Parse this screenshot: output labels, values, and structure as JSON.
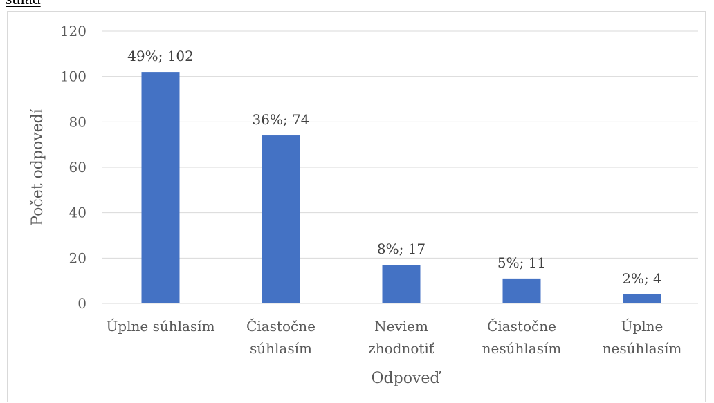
{
  "page": {
    "fragment_text": "súlad"
  },
  "chart_data": {
    "type": "bar",
    "title": "",
    "xlabel": "Odpoveď",
    "ylabel": "Počet odpovedí",
    "ylim": [
      0,
      120
    ],
    "yticks": [
      0,
      20,
      40,
      60,
      80,
      100,
      120
    ],
    "grid": true,
    "legend": "none",
    "bar_color": "#4472c4",
    "categories": [
      [
        "Úplne súhlasím"
      ],
      [
        "Čiastočne",
        "súhlasím"
      ],
      [
        "Neviem",
        "zhodnotiť"
      ],
      [
        "Čiastočne",
        "nesúhlasím"
      ],
      [
        "Úplne",
        "nesúhlasím"
      ]
    ],
    "values": [
      102,
      74,
      17,
      11,
      4
    ],
    "data_labels": [
      "49%; 102",
      "36%; 74",
      "8%; 17",
      "5%; 11",
      "2%; 4"
    ]
  }
}
